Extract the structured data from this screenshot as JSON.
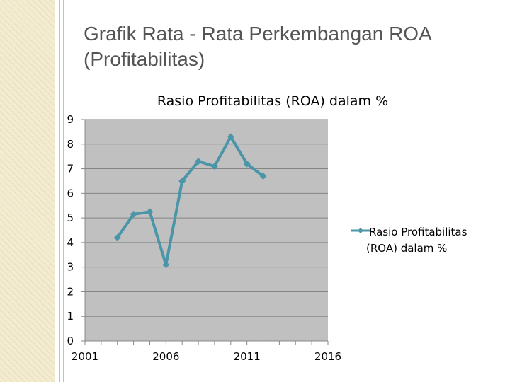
{
  "slide": {
    "title_line1": "Grafik Rata - Rata Perkembangan ROA",
    "title_line2": "(Profitabilitas)"
  },
  "chart_data": {
    "type": "line",
    "title": "Rasio Profitabilitas (ROA) dalam %",
    "xlabel": "",
    "ylabel": "",
    "xlim": [
      2001,
      2016
    ],
    "ylim": [
      0,
      9
    ],
    "x_ticks": [
      2001,
      2006,
      2011,
      2016
    ],
    "y_ticks": [
      0,
      1,
      2,
      3,
      4,
      5,
      6,
      7,
      8,
      9
    ],
    "grid": true,
    "legend_position": "right",
    "plot_background": "#c0c0c0",
    "series": [
      {
        "name": "Rasio Profitabilitas (ROA) dalam %",
        "color": "#4a96a8",
        "x": [
          2003,
          2004,
          2005,
          2006,
          2007,
          2008,
          2009,
          2010,
          2011,
          2012
        ],
        "y": [
          4.2,
          5.15,
          5.25,
          3.1,
          6.5,
          7.3,
          7.1,
          8.3,
          7.2,
          6.7
        ]
      }
    ]
  }
}
